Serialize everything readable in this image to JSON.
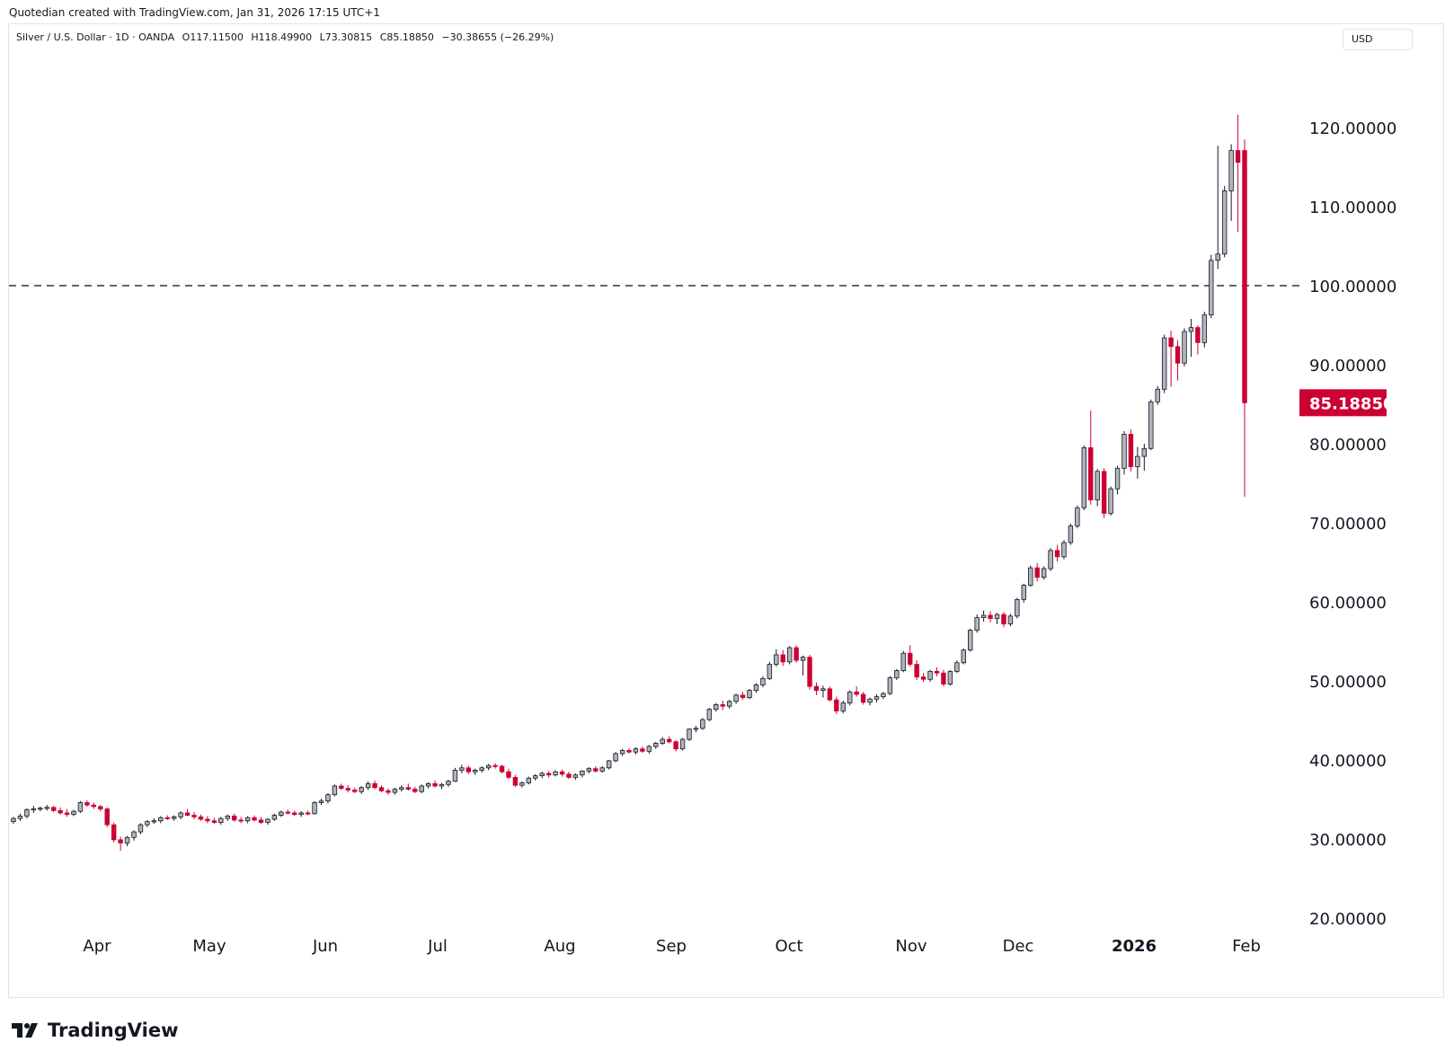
{
  "header": {
    "caption": "Quotedian created with TradingView.com, Jan 31, 2026 17:15 UTC+1"
  },
  "legend": {
    "symbol": "Silver / U.S. Dollar · 1D · OANDA",
    "open": "O117.11500",
    "high": "H118.49900",
    "low": "L73.30815",
    "close": "C85.18850",
    "change": "−30.38655 (−26.29%)"
  },
  "currency_label": "USD",
  "brand": {
    "name": "TradingView"
  },
  "colors": {
    "up_fill": "#b2b5be",
    "up_border": "#131722",
    "down": "#cc0033",
    "dashed_line": "#333333",
    "price_tag": "#cc0033"
  },
  "chart_data": {
    "type": "candlestick",
    "title": "",
    "instrument": "Silver / U.S. Dollar",
    "timeframe": "1D",
    "source": "OANDA",
    "y_axis": {
      "position": "right",
      "ticks": [
        20,
        30,
        40,
        50,
        60,
        70,
        80,
        90,
        100,
        110,
        120
      ],
      "tick_labels": [
        "20.00000",
        "30.00000",
        "40.00000",
        "50.00000",
        "60.00000",
        "70.00000",
        "80.00000",
        "90.00000",
        "100.00000",
        "110.00000",
        "120.00000"
      ],
      "range": [
        17.5,
        130
      ]
    },
    "x_axis": {
      "labels": [
        "Apr",
        "May",
        "Jun",
        "Jul",
        "Aug",
        "Sep",
        "Oct",
        "Nov",
        "Dec",
        "2026",
        "Feb"
      ],
      "bold_labels": [
        "2026"
      ]
    },
    "horizontal_line": {
      "value": 100,
      "style": "dashed"
    },
    "last_price": {
      "value": 85.1885,
      "label": "85.18850"
    },
    "grid": false,
    "candles": [
      [
        32.2,
        32.8,
        31.9,
        32.6
      ],
      [
        32.6,
        33.2,
        32.3,
        32.9
      ],
      [
        32.9,
        33.9,
        32.6,
        33.7
      ],
      [
        33.7,
        34.2,
        33.3,
        33.8
      ],
      [
        33.8,
        34.1,
        33.5,
        33.9
      ],
      [
        33.9,
        34.3,
        33.6,
        34.0
      ],
      [
        34.0,
        34.2,
        33.4,
        33.6
      ],
      [
        33.6,
        34.0,
        33.1,
        33.3
      ],
      [
        33.3,
        33.8,
        32.8,
        33.1
      ],
      [
        33.1,
        33.7,
        32.9,
        33.5
      ],
      [
        33.5,
        34.8,
        33.3,
        34.6
      ],
      [
        34.6,
        34.9,
        34.1,
        34.3
      ],
      [
        34.3,
        34.6,
        33.8,
        34.1
      ],
      [
        34.1,
        34.3,
        33.5,
        33.8
      ],
      [
        33.8,
        34.0,
        31.5,
        31.8
      ],
      [
        31.8,
        32.1,
        29.6,
        29.9
      ],
      [
        29.9,
        30.3,
        28.5,
        29.5
      ],
      [
        29.5,
        30.4,
        29.1,
        30.2
      ],
      [
        30.2,
        31.1,
        29.8,
        30.9
      ],
      [
        30.9,
        32.0,
        30.6,
        31.8
      ],
      [
        31.8,
        32.4,
        31.5,
        32.2
      ],
      [
        32.2,
        32.6,
        31.9,
        32.3
      ],
      [
        32.3,
        32.9,
        32.0,
        32.7
      ],
      [
        32.7,
        33.0,
        32.4,
        32.6
      ],
      [
        32.6,
        33.0,
        32.3,
        32.8
      ],
      [
        32.8,
        33.5,
        32.5,
        33.3
      ],
      [
        33.3,
        33.8,
        32.9,
        33.0
      ],
      [
        33.0,
        33.4,
        32.5,
        32.8
      ],
      [
        32.8,
        33.1,
        32.3,
        32.5
      ],
      [
        32.5,
        32.9,
        32.0,
        32.3
      ],
      [
        32.3,
        32.7,
        31.9,
        32.1
      ],
      [
        32.1,
        32.8,
        31.8,
        32.6
      ],
      [
        32.6,
        33.1,
        32.3,
        32.9
      ],
      [
        32.9,
        33.2,
        32.2,
        32.4
      ],
      [
        32.4,
        32.8,
        32.0,
        32.3
      ],
      [
        32.3,
        32.9,
        32.0,
        32.7
      ],
      [
        32.7,
        33.0,
        32.2,
        32.4
      ],
      [
        32.4,
        32.8,
        31.9,
        32.1
      ],
      [
        32.1,
        32.6,
        31.8,
        32.5
      ],
      [
        32.5,
        33.2,
        32.3,
        33.0
      ],
      [
        33.0,
        33.6,
        32.8,
        33.4
      ],
      [
        33.4,
        33.7,
        33.1,
        33.3
      ],
      [
        33.3,
        33.6,
        32.9,
        33.1
      ],
      [
        33.1,
        33.5,
        32.8,
        33.3
      ],
      [
        33.3,
        33.6,
        33.0,
        33.2
      ],
      [
        33.2,
        34.8,
        33.1,
        34.6
      ],
      [
        34.6,
        35.1,
        34.3,
        34.8
      ],
      [
        34.8,
        35.8,
        34.5,
        35.6
      ],
      [
        35.6,
        36.9,
        35.4,
        36.7
      ],
      [
        36.7,
        37.0,
        36.2,
        36.4
      ],
      [
        36.4,
        36.8,
        35.9,
        36.2
      ],
      [
        36.2,
        36.5,
        35.8,
        36.0
      ],
      [
        36.0,
        36.7,
        35.7,
        36.5
      ],
      [
        36.5,
        37.3,
        36.2,
        37.0
      ],
      [
        37.0,
        37.4,
        36.3,
        36.5
      ],
      [
        36.5,
        36.8,
        35.9,
        36.1
      ],
      [
        36.1,
        36.4,
        35.6,
        35.9
      ],
      [
        35.9,
        36.5,
        35.6,
        36.3
      ],
      [
        36.3,
        36.8,
        36.0,
        36.5
      ],
      [
        36.5,
        37.0,
        36.1,
        36.3
      ],
      [
        36.3,
        36.6,
        35.8,
        36.0
      ],
      [
        36.0,
        36.9,
        35.8,
        36.7
      ],
      [
        36.7,
        37.2,
        36.4,
        37.0
      ],
      [
        37.0,
        37.4,
        36.5,
        36.7
      ],
      [
        36.7,
        37.1,
        36.3,
        36.9
      ],
      [
        36.9,
        37.5,
        36.6,
        37.3
      ],
      [
        37.3,
        39.0,
        37.2,
        38.7
      ],
      [
        38.7,
        39.4,
        38.3,
        39.0
      ],
      [
        39.0,
        39.3,
        38.2,
        38.5
      ],
      [
        38.5,
        38.9,
        38.1,
        38.7
      ],
      [
        38.7,
        39.2,
        38.4,
        39.0
      ],
      [
        39.0,
        39.5,
        38.7,
        39.3
      ],
      [
        39.3,
        39.6,
        38.9,
        39.2
      ],
      [
        39.2,
        39.4,
        38.3,
        38.5
      ],
      [
        38.5,
        38.9,
        37.6,
        37.8
      ],
      [
        37.8,
        38.1,
        36.6,
        36.8
      ],
      [
        36.8,
        37.3,
        36.5,
        37.1
      ],
      [
        37.1,
        37.9,
        36.9,
        37.7
      ],
      [
        37.7,
        38.2,
        37.4,
        38.0
      ],
      [
        38.0,
        38.5,
        37.7,
        38.3
      ],
      [
        38.3,
        38.6,
        37.8,
        38.1
      ],
      [
        38.1,
        38.7,
        37.9,
        38.5
      ],
      [
        38.5,
        38.8,
        37.9,
        38.2
      ],
      [
        38.2,
        38.5,
        37.6,
        37.8
      ],
      [
        37.8,
        38.3,
        37.5,
        38.1
      ],
      [
        38.1,
        38.7,
        37.8,
        38.6
      ],
      [
        38.6,
        39.1,
        38.3,
        38.9
      ],
      [
        38.9,
        39.2,
        38.4,
        38.6
      ],
      [
        38.6,
        39.2,
        38.4,
        39.0
      ],
      [
        39.0,
        40.0,
        38.8,
        39.9
      ],
      [
        39.9,
        41.0,
        39.7,
        40.8
      ],
      [
        40.8,
        41.4,
        40.5,
        41.2
      ],
      [
        41.2,
        41.5,
        40.8,
        41.0
      ],
      [
        41.0,
        41.6,
        40.7,
        41.4
      ],
      [
        41.4,
        41.7,
        40.9,
        41.1
      ],
      [
        41.1,
        41.9,
        40.8,
        41.7
      ],
      [
        41.7,
        42.3,
        41.4,
        42.1
      ],
      [
        42.1,
        42.9,
        41.9,
        42.6
      ],
      [
        42.6,
        43.0,
        42.1,
        42.3
      ],
      [
        42.3,
        42.5,
        41.1,
        41.4
      ],
      [
        41.4,
        42.8,
        41.2,
        42.6
      ],
      [
        42.6,
        44.0,
        42.4,
        43.9
      ],
      [
        43.9,
        44.3,
        43.5,
        44.0
      ],
      [
        44.0,
        45.3,
        43.8,
        45.1
      ],
      [
        45.1,
        46.6,
        44.9,
        46.4
      ],
      [
        46.4,
        47.2,
        46.1,
        47.0
      ],
      [
        47.0,
        47.5,
        46.3,
        46.8
      ],
      [
        46.8,
        47.6,
        46.5,
        47.4
      ],
      [
        47.4,
        48.4,
        47.1,
        48.2
      ],
      [
        48.2,
        48.6,
        47.6,
        47.9
      ],
      [
        47.9,
        49.0,
        47.7,
        48.8
      ],
      [
        48.8,
        49.7,
        48.5,
        49.5
      ],
      [
        49.5,
        50.6,
        49.2,
        50.3
      ],
      [
        50.3,
        52.4,
        50.1,
        52.1
      ],
      [
        52.1,
        54.0,
        51.8,
        53.3
      ],
      [
        53.3,
        53.9,
        51.9,
        52.4
      ],
      [
        52.4,
        54.4,
        52.1,
        54.2
      ],
      [
        54.2,
        54.5,
        52.3,
        52.6
      ],
      [
        52.6,
        53.2,
        50.7,
        53.0
      ],
      [
        53.0,
        53.3,
        48.9,
        49.3
      ],
      [
        49.3,
        49.8,
        48.2,
        48.8
      ],
      [
        48.8,
        49.4,
        47.9,
        49.0
      ],
      [
        49.0,
        49.3,
        47.4,
        47.6
      ],
      [
        47.6,
        48.0,
        45.8,
        46.2
      ],
      [
        46.2,
        47.5,
        45.9,
        47.2
      ],
      [
        47.2,
        48.8,
        46.9,
        48.6
      ],
      [
        48.6,
        49.3,
        48.0,
        48.3
      ],
      [
        48.3,
        48.6,
        47.0,
        47.3
      ],
      [
        47.3,
        47.9,
        46.9,
        47.7
      ],
      [
        47.7,
        48.3,
        47.3,
        48.0
      ],
      [
        48.0,
        48.6,
        47.7,
        48.4
      ],
      [
        48.4,
        50.6,
        48.2,
        50.4
      ],
      [
        50.4,
        51.5,
        50.1,
        51.3
      ],
      [
        51.3,
        53.8,
        51.1,
        53.5
      ],
      [
        53.5,
        54.5,
        51.8,
        52.1
      ],
      [
        52.1,
        52.6,
        50.1,
        50.5
      ],
      [
        50.5,
        51.0,
        49.9,
        50.2
      ],
      [
        50.2,
        51.4,
        49.9,
        51.2
      ],
      [
        51.2,
        51.7,
        50.6,
        51.0
      ],
      [
        51.0,
        51.4,
        49.3,
        49.6
      ],
      [
        49.6,
        51.4,
        49.4,
        51.2
      ],
      [
        51.2,
        52.6,
        51.0,
        52.3
      ],
      [
        52.3,
        54.1,
        52.1,
        53.9
      ],
      [
        53.9,
        56.6,
        53.7,
        56.4
      ],
      [
        56.4,
        58.4,
        56.1,
        58.0
      ],
      [
        58.0,
        58.9,
        57.5,
        58.3
      ],
      [
        58.3,
        58.8,
        57.4,
        57.9
      ],
      [
        57.9,
        58.6,
        57.2,
        58.4
      ],
      [
        58.4,
        58.7,
        56.8,
        57.2
      ],
      [
        57.2,
        58.5,
        56.9,
        58.2
      ],
      [
        58.2,
        60.5,
        57.9,
        60.3
      ],
      [
        60.3,
        62.3,
        59.9,
        62.1
      ],
      [
        62.1,
        64.6,
        61.9,
        64.3
      ],
      [
        64.3,
        64.9,
        62.6,
        63.1
      ],
      [
        63.1,
        64.5,
        62.8,
        64.2
      ],
      [
        64.2,
        66.8,
        63.9,
        66.5
      ],
      [
        66.5,
        67.2,
        65.1,
        65.7
      ],
      [
        65.7,
        67.8,
        65.4,
        67.5
      ],
      [
        67.5,
        69.9,
        67.2,
        69.6
      ],
      [
        69.6,
        72.2,
        69.3,
        71.9
      ],
      [
        71.9,
        79.8,
        71.6,
        79.5
      ],
      [
        79.5,
        84.2,
        72.3,
        72.9
      ],
      [
        72.9,
        76.8,
        72.1,
        76.5
      ],
      [
        76.5,
        76.9,
        70.6,
        71.2
      ],
      [
        71.2,
        74.6,
        70.9,
        74.3
      ],
      [
        74.3,
        77.2,
        73.6,
        76.9
      ],
      [
        76.9,
        81.6,
        76.1,
        81.2
      ],
      [
        81.2,
        81.8,
        76.5,
        77.1
      ],
      [
        77.1,
        79.6,
        75.6,
        78.4
      ],
      [
        78.4,
        80.0,
        76.6,
        79.4
      ],
      [
        79.4,
        85.6,
        79.2,
        85.3
      ],
      [
        85.3,
        87.3,
        84.9,
        86.9
      ],
      [
        86.9,
        93.8,
        86.4,
        93.4
      ],
      [
        93.4,
        94.3,
        87.2,
        92.3
      ],
      [
        92.3,
        93.1,
        88.0,
        90.2
      ],
      [
        90.2,
        94.6,
        89.8,
        94.2
      ],
      [
        94.2,
        95.8,
        91.0,
        94.7
      ],
      [
        94.7,
        95.0,
        91.3,
        92.8
      ],
      [
        92.8,
        96.7,
        92.2,
        96.3
      ],
      [
        96.3,
        103.9,
        95.9,
        103.2
      ],
      [
        103.2,
        117.7,
        102.1,
        104.0
      ],
      [
        104.0,
        112.6,
        103.6,
        112.0
      ],
      [
        112.0,
        117.9,
        108.2,
        117.1
      ],
      [
        117.1,
        121.6,
        106.8,
        115.6
      ],
      [
        117.1,
        118.5,
        73.3,
        85.1885
      ]
    ]
  }
}
